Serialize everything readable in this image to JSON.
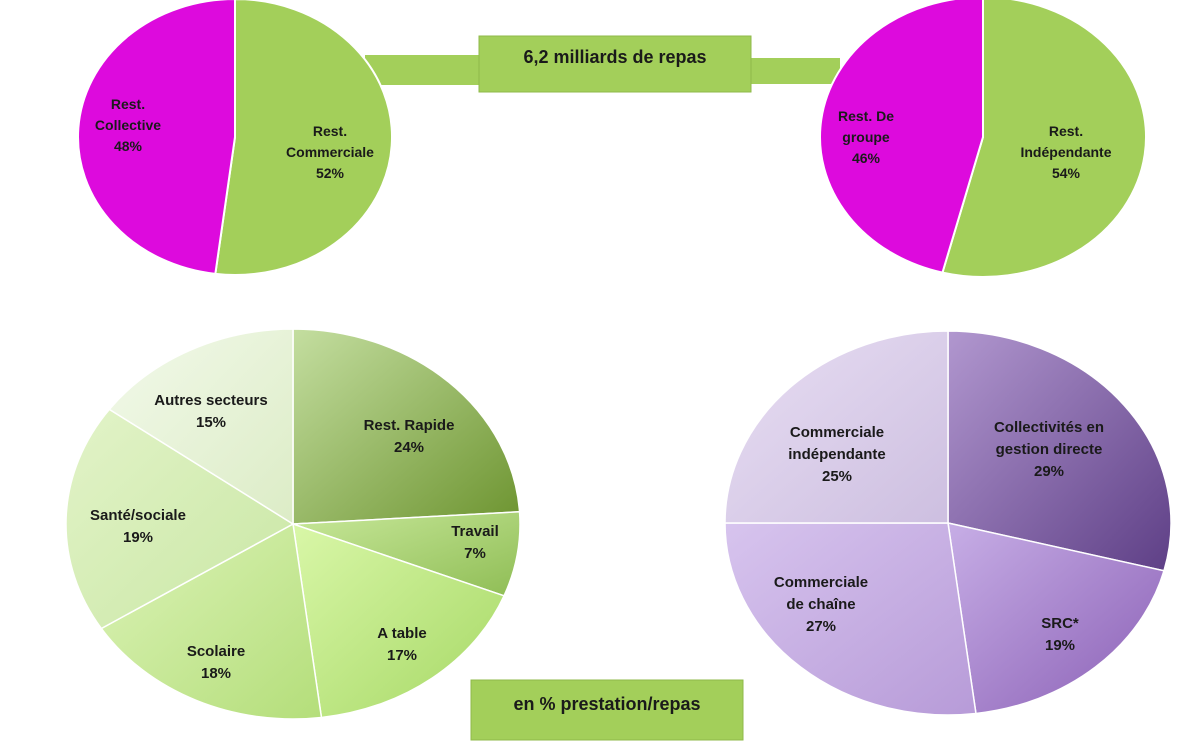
{
  "header_box": {
    "text": "6,2 milliards de repas"
  },
  "footer_box": {
    "text": "en % prestation/repas"
  },
  "colors": {
    "green": "#a3cf5a",
    "magenta": "#dd0add",
    "connector": "#a3cf5a",
    "box_fill": "#a3cf5a",
    "box_border": "#8fba4a"
  },
  "chart_data": [
    {
      "id": "top-left",
      "type": "pie",
      "slices": [
        {
          "label": [
            "Rest.",
            "Commerciale"
          ],
          "value": 52,
          "pct": "52%",
          "color": "#a3cf5a"
        },
        {
          "label": [
            "Rest.",
            "Collective"
          ],
          "value": 48,
          "pct": "48%",
          "color": "#dd0add"
        }
      ]
    },
    {
      "id": "top-right",
      "type": "pie",
      "slices": [
        {
          "label": [
            "Rest.",
            "Indépendante"
          ],
          "value": 54,
          "pct": "54%",
          "color": "#a3cf5a"
        },
        {
          "label": [
            "Rest. De",
            "groupe"
          ],
          "value": 46,
          "pct": "46%",
          "color": "#dd0add"
        }
      ]
    },
    {
      "id": "bottom-left",
      "type": "pie",
      "slices": [
        {
          "label": [
            "Rest. Rapide"
          ],
          "value": 24,
          "pct": "24%",
          "color": "#7fa640"
        },
        {
          "label": [
            "Travail"
          ],
          "value": 7,
          "pct": "7%",
          "color": "#b4d97a"
        },
        {
          "label": [
            "A table"
          ],
          "value": 17,
          "pct": "17%",
          "color": "#b9ea78"
        },
        {
          "label": [
            "Scolaire"
          ],
          "value": 18,
          "pct": "18%",
          "color": "#c6ea92"
        },
        {
          "label": [
            "Santé/sociale"
          ],
          "value": 19,
          "pct": "19%",
          "color": "#d6efb3"
        },
        {
          "label": [
            "Autres secteurs"
          ],
          "value": 15,
          "pct": "15%",
          "color": "#e8f4d6"
        }
      ]
    },
    {
      "id": "bottom-right",
      "type": "pie",
      "slices": [
        {
          "label": [
            "Collectivités en",
            "gestion directe"
          ],
          "value": 29,
          "pct": "29%",
          "color": "#7a5a9e"
        },
        {
          "label": [
            "SRC*"
          ],
          "value": 19,
          "pct": "19%",
          "color": "#a884cc"
        },
        {
          "label": [
            "Commerciale",
            "de chaîne"
          ],
          "value": 27,
          "pct": "27%",
          "color": "#c8b0e4"
        },
        {
          "label": [
            "Commerciale",
            "indépendante"
          ],
          "value": 25,
          "pct": "25%",
          "color": "#dcd0ea"
        }
      ]
    }
  ]
}
